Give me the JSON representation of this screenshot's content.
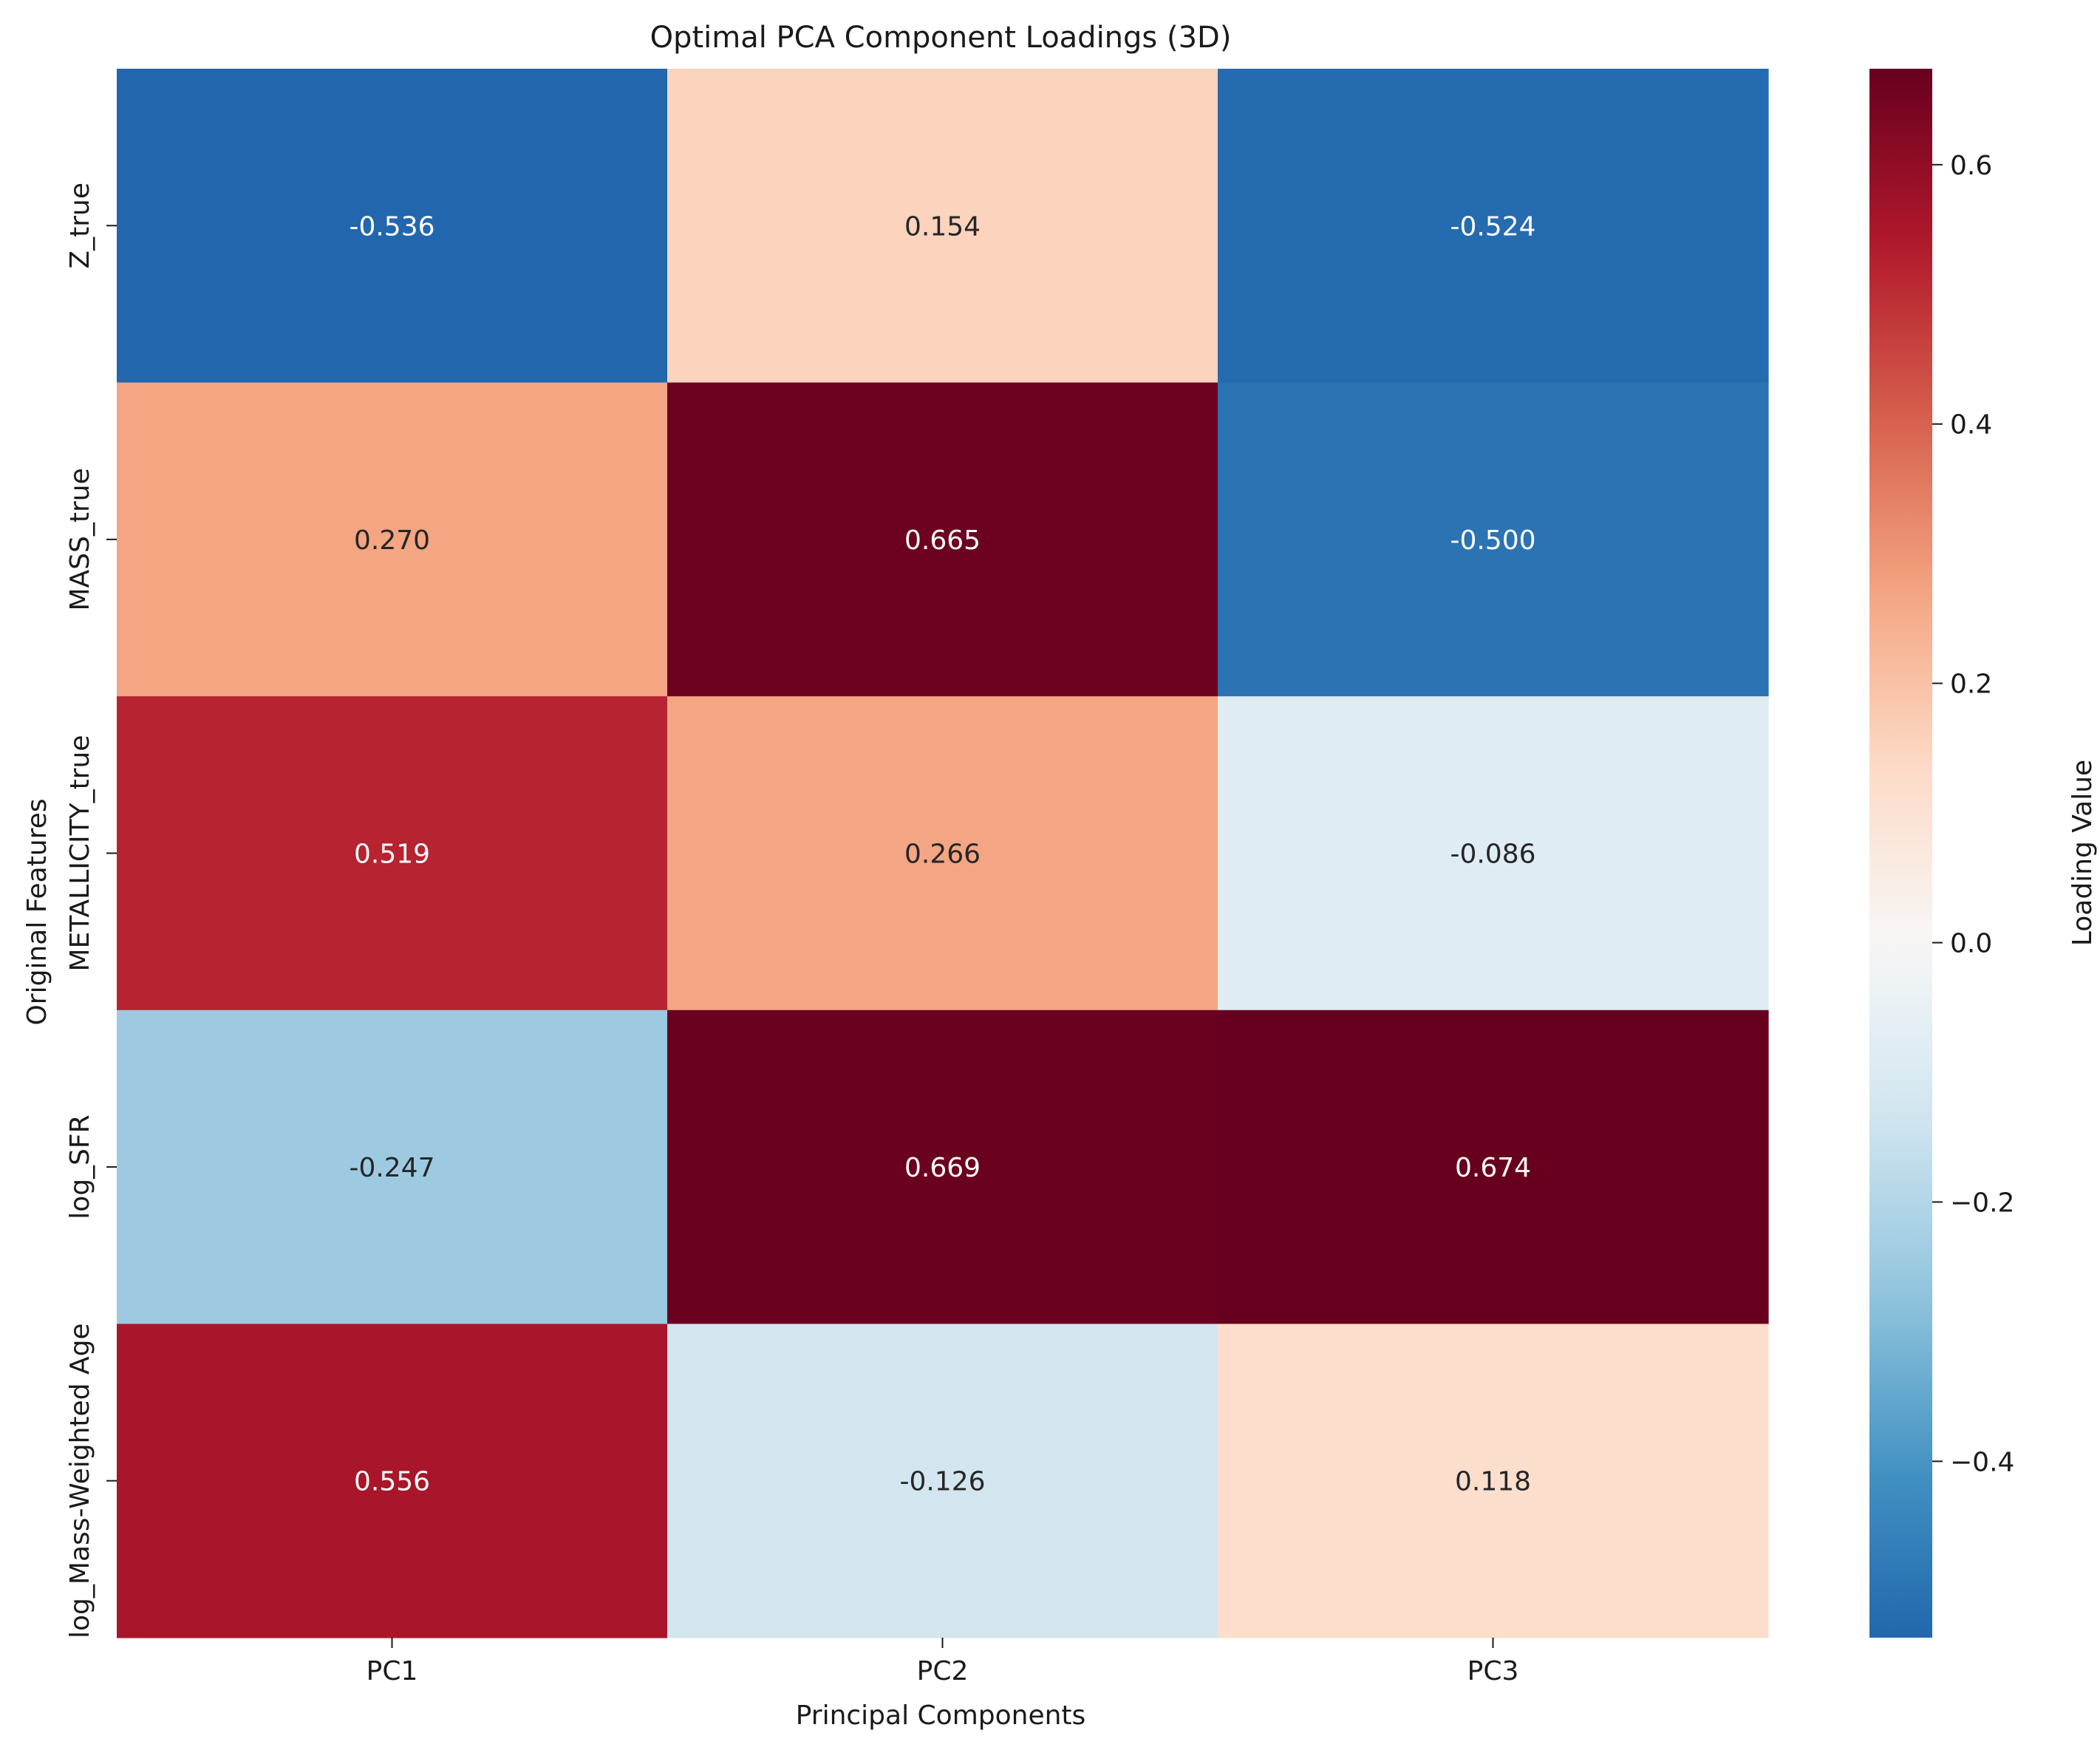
{
  "chart_data": {
    "type": "heatmap",
    "title": "Optimal PCA Component Loadings (3D)",
    "xlabel": "Principal Components",
    "ylabel": "Original Features",
    "x_categories": [
      "PC1",
      "PC2",
      "PC3"
    ],
    "y_categories": [
      "Z_true",
      "MASS_true",
      "METALLICITY_true",
      "log_SFR",
      "log_Mass-Weighted Age"
    ],
    "values": [
      [
        -0.536,
        0.154,
        -0.524
      ],
      [
        0.27,
        0.665,
        -0.5
      ],
      [
        0.519,
        0.266,
        -0.086
      ],
      [
        -0.247,
        0.669,
        0.674
      ],
      [
        0.556,
        -0.126,
        0.118
      ]
    ],
    "cell_labels": [
      [
        "-0.536",
        "0.154",
        "-0.524"
      ],
      [
        "0.270",
        "0.665",
        "-0.500"
      ],
      [
        "0.519",
        "0.266",
        "-0.086"
      ],
      [
        "-0.247",
        "0.669",
        "0.674"
      ],
      [
        "0.556",
        "-0.126",
        "0.118"
      ]
    ],
    "colormap": "RdBu_r",
    "color_range": [
      -0.536,
      0.674
    ],
    "colorbar": {
      "label": "Loading Value",
      "ticks": [
        -0.4,
        -0.2,
        0.0,
        0.2,
        0.4,
        0.6
      ],
      "tick_labels": [
        "−0.4",
        "−0.2",
        "0.0",
        "0.2",
        "0.4",
        "0.6"
      ]
    },
    "grid": false,
    "legend": "colorbar-right"
  }
}
